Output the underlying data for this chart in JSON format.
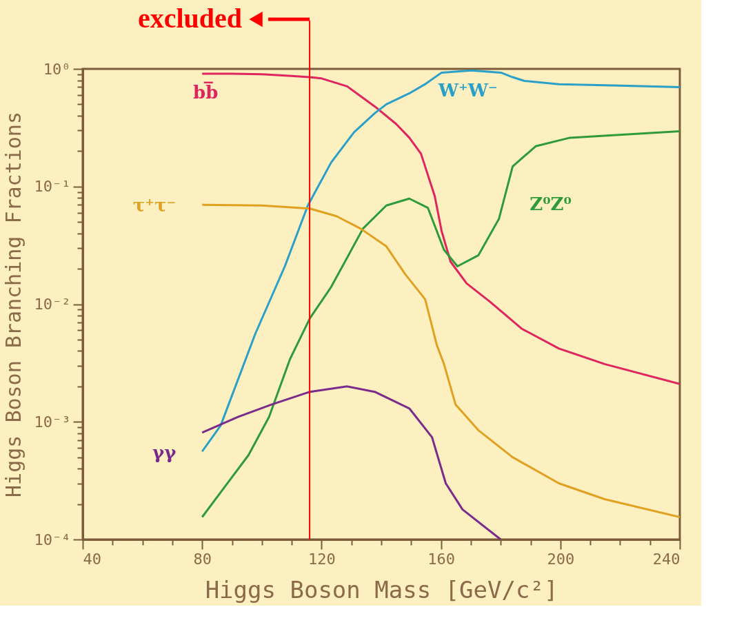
{
  "chart_data": {
    "type": "line",
    "xlabel": "Higgs Boson Mass [GeV/c²]",
    "ylabel": "Higgs Boson Branching Fractions",
    "log": "y",
    "grid": false,
    "legend": false,
    "marker": "none",
    "line_style": "solid",
    "xlim": [
      40,
      240
    ],
    "xticks": [
      40,
      {
        "value": 50,
        "label": null
      },
      {
        "value": 60,
        "label": null
      },
      {
        "value": 70,
        "label": null
      },
      80,
      {
        "value": 90,
        "label": null
      },
      {
        "value": 100,
        "label": null
      },
      {
        "value": 110,
        "label": null
      },
      120,
      {
        "value": 130,
        "label": null
      },
      {
        "value": 140,
        "label": null
      },
      {
        "value": 150,
        "label": null
      },
      160,
      {
        "value": 170,
        "label": null
      },
      {
        "value": 180,
        "label": null
      },
      {
        "value": 190,
        "label": null
      },
      200,
      {
        "value": 210,
        "label": null
      },
      {
        "value": 220,
        "label": null
      },
      {
        "value": 230,
        "label": null
      },
      240
    ],
    "ylim": [
      0.0001,
      1
    ],
    "yticks": [
      {
        "value": 0.0001,
        "label": "10⁻⁴"
      },
      {
        "value": 0.0002,
        "label": null
      },
      {
        "value": 0.0003,
        "label": null
      },
      {
        "value": 0.0004,
        "label": null
      },
      {
        "value": 0.0005,
        "label": null
      },
      {
        "value": 0.0006,
        "label": null
      },
      {
        "value": 0.0007,
        "label": null
      },
      {
        "value": 0.0008,
        "label": null
      },
      {
        "value": 0.0009,
        "label": null
      },
      {
        "value": 0.001,
        "label": "10⁻³"
      },
      {
        "value": 0.002,
        "label": null
      },
      {
        "value": 0.003,
        "label": null
      },
      {
        "value": 0.004,
        "label": null
      },
      {
        "value": 0.005,
        "label": null
      },
      {
        "value": 0.006,
        "label": null
      },
      {
        "value": 0.007,
        "label": null
      },
      {
        "value": 0.008,
        "label": null
      },
      {
        "value": 0.009,
        "label": null
      },
      {
        "value": 0.01,
        "label": "10⁻²"
      },
      {
        "value": 0.02,
        "label": null
      },
      {
        "value": 0.03,
        "label": null
      },
      {
        "value": 0.04,
        "label": null
      },
      {
        "value": 0.05,
        "label": null
      },
      {
        "value": 0.06,
        "label": null
      },
      {
        "value": 0.07,
        "label": null
      },
      {
        "value": 0.08,
        "label": null
      },
      {
        "value": 0.09,
        "label": null
      },
      {
        "value": 0.1,
        "label": "10⁻¹"
      },
      {
        "value": 0.2,
        "label": null
      },
      {
        "value": 0.3,
        "label": null
      },
      {
        "value": 0.4,
        "label": null
      },
      {
        "value": 0.5,
        "label": null
      },
      {
        "value": 0.6,
        "label": null
      },
      {
        "value": 0.7,
        "label": null
      },
      {
        "value": 0.8,
        "label": null
      },
      {
        "value": 0.9,
        "label": null
      },
      {
        "value": 1,
        "label": "10⁰"
      }
    ],
    "series": [
      {
        "name": "bb̅",
        "color": "#e0245e",
        "x": [
          80,
          90,
          100,
          110,
          116,
          120,
          128.6,
          137.8,
          145,
          149.4,
          153.3,
          157.9,
          160.2,
          163.2,
          168.6,
          176.4,
          187,
          199.5,
          214.8,
          240
        ],
        "values": [
          0.91,
          0.91,
          0.9,
          0.87,
          0.85,
          0.83,
          0.71,
          0.48,
          0.34,
          0.26,
          0.19,
          0.083,
          0.042,
          0.023,
          0.015,
          0.0105,
          0.0062,
          0.0042,
          0.0031,
          0.0021
        ]
      },
      {
        "name": "W⁺W⁻",
        "color": "#2aa0c8",
        "x": [
          80,
          86.2,
          97.8,
          107.7,
          115.4,
          123.2,
          130.9,
          137.8,
          141.7,
          149.4,
          155,
          160.2,
          170.2,
          180.1,
          184,
          188,
          199.5,
          220,
          240
        ],
        "values": [
          0.00056,
          0.00093,
          0.0056,
          0.021,
          0.069,
          0.16,
          0.29,
          0.42,
          0.5,
          0.62,
          0.75,
          0.93,
          0.97,
          0.93,
          0.85,
          0.79,
          0.74,
          0.72,
          0.7
        ]
      },
      {
        "name": "Z⁰Z⁰",
        "color": "#2e9a3a",
        "x": [
          80,
          88,
          95.5,
          102.4,
          109.4,
          116.1,
          123.2,
          133.9,
          141.7,
          149.4,
          155.6,
          161,
          165.5,
          172.5,
          179.4,
          184,
          191.7,
          203.2,
          240
        ],
        "values": [
          0.000155,
          0.00029,
          0.00052,
          0.0011,
          0.0034,
          0.0076,
          0.014,
          0.044,
          0.069,
          0.079,
          0.066,
          0.029,
          0.021,
          0.026,
          0.053,
          0.148,
          0.22,
          0.26,
          0.295
        ]
      },
      {
        "name": "τ⁺τ⁻",
        "color": "#e0a020",
        "x": [
          80,
          100,
          116.1,
          125,
          133,
          141.7,
          148,
          154.7,
          158.6,
          161,
          164.9,
          172.5,
          184,
          199.5,
          214.8,
          240
        ],
        "values": [
          0.07,
          0.069,
          0.065,
          0.056,
          0.044,
          0.031,
          0.018,
          0.011,
          0.0045,
          0.0031,
          0.0014,
          0.00085,
          0.0005,
          0.0003,
          0.00022,
          0.000155
        ]
      },
      {
        "name": "γγ",
        "color": "#7a2a8a",
        "x": [
          80,
          92,
          103.1,
          116.1,
          128.6,
          137.8,
          149.4,
          157,
          161.6,
          167.2,
          180
        ],
        "values": [
          0.00081,
          0.0011,
          0.0014,
          0.0018,
          0.002,
          0.0018,
          0.0013,
          0.00074,
          0.0003,
          0.00018,
          0.0001
        ]
      }
    ],
    "ref_lines": [
      {
        "axis": "x",
        "value": 116,
        "label": "excluded",
        "color": "#ff0000"
      }
    ]
  }
}
